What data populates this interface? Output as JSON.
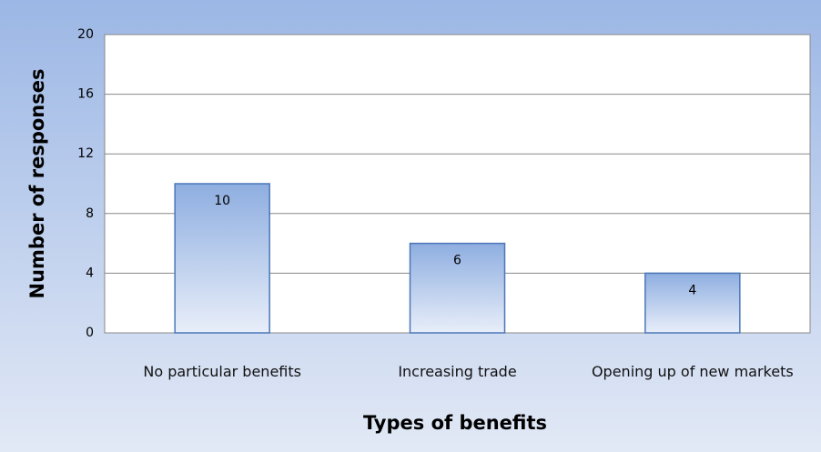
{
  "chart_data": {
    "type": "bar",
    "categories": [
      "No particular benefits",
      "Increasing trade",
      "Opening up of new markets"
    ],
    "values": [
      10,
      6,
      4
    ],
    "color": "#8eaee0",
    "ylim": [
      0,
      20
    ],
    "yticks": [
      0,
      4,
      8,
      12,
      16,
      20
    ],
    "grid": true,
    "y_label": "Number of responses",
    "x_label": "Types of benefits"
  }
}
